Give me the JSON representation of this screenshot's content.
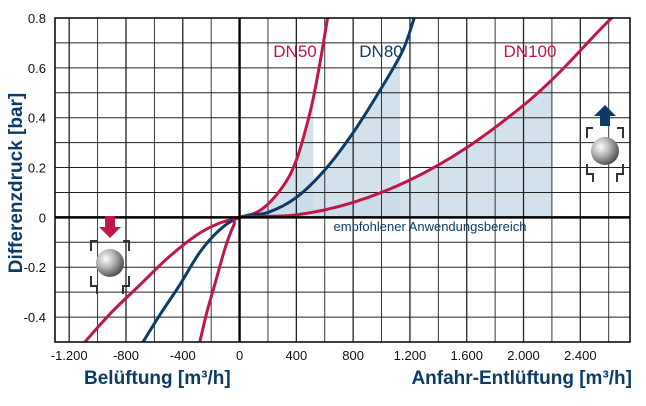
{
  "chart_data": {
    "type": "line",
    "ylabel": "Differenzdruck [bar]",
    "xlabel_left": "Belüftung [m³/h]",
    "xlabel_right": "Anfahr-Entlüftung [m³/h]",
    "xlim": [
      -1300,
      2750
    ],
    "ylim": [
      -0.5,
      0.8
    ],
    "xticks": [
      -1200,
      -800,
      -400,
      0,
      400,
      800,
      1200,
      1600,
      2000,
      2400
    ],
    "xtick_labels": [
      "-1.200",
      "-800",
      "-400",
      "0",
      "400",
      "800",
      "1.200",
      "1.600",
      "2.000",
      "2.400"
    ],
    "yticks": [
      -0.4,
      -0.2,
      0,
      0.2,
      0.4,
      0.6,
      0.8
    ],
    "ytick_labels": [
      "-0.4",
      "-0.2",
      "0",
      "0.2",
      "0.4",
      "0.6",
      "0.8"
    ],
    "grid": true,
    "series": [
      {
        "name": "DN50",
        "color": "#c0174b",
        "points": [
          [
            -1090,
            -0.5
          ],
          [
            -900,
            -0.38
          ],
          [
            -700,
            -0.27
          ],
          [
            -500,
            -0.16
          ],
          [
            -300,
            -0.07
          ],
          [
            -150,
            -0.025
          ],
          [
            0,
            0
          ],
          [
            150,
            0.03
          ],
          [
            300,
            0.12
          ],
          [
            400,
            0.23
          ],
          [
            500,
            0.43
          ],
          [
            560,
            0.6
          ],
          [
            620,
            0.8
          ]
        ],
        "shade_to_x": 520
      },
      {
        "name": "DN80",
        "color": "#0d3b66",
        "points": [
          [
            -680,
            -0.5
          ],
          [
            -560,
            -0.39
          ],
          [
            -420,
            -0.27
          ],
          [
            -280,
            -0.14
          ],
          [
            -140,
            -0.05
          ],
          [
            0,
            0
          ],
          [
            200,
            0.02
          ],
          [
            400,
            0.08
          ],
          [
            600,
            0.19
          ],
          [
            800,
            0.34
          ],
          [
            1000,
            0.52
          ],
          [
            1150,
            0.67
          ],
          [
            1230,
            0.8
          ]
        ],
        "shade_to_x": 1130
      },
      {
        "name": "DN100",
        "color": "#c0174b",
        "points": [
          [
            -280,
            -0.5
          ],
          [
            -230,
            -0.38
          ],
          [
            -170,
            -0.26
          ],
          [
            -100,
            -0.12
          ],
          [
            -40,
            -0.03
          ],
          [
            0,
            0
          ],
          [
            400,
            0.01
          ],
          [
            800,
            0.06
          ],
          [
            1200,
            0.15
          ],
          [
            1600,
            0.28
          ],
          [
            2000,
            0.45
          ],
          [
            2250,
            0.58
          ],
          [
            2500,
            0.73
          ],
          [
            2620,
            0.8
          ]
        ],
        "shade_to_x": 2200
      }
    ],
    "annotations": [
      "DN50",
      "DN80",
      "DN100",
      "empfohlener Anwendungsbereich"
    ],
    "shade_color": "#c8dae8"
  }
}
